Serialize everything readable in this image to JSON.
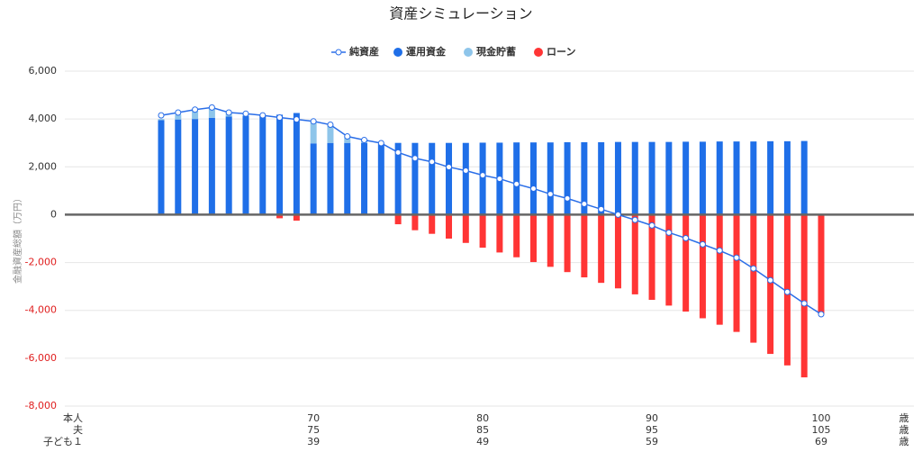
{
  "chart_data": {
    "type": "stacked_bar_line",
    "title": "資産シミュレーション",
    "y_label": "金融資産総額（万円）",
    "ylim": [
      -8000,
      6000
    ],
    "yticks": [
      {
        "value": 6000,
        "label": "6,000"
      },
      {
        "value": 4000,
        "label": "4,000"
      },
      {
        "value": 2000,
        "label": "2,000"
      },
      0,
      {
        "value": -2000,
        "label": "-2,000"
      },
      {
        "value": -4000,
        "label": "-4,000"
      },
      {
        "value": -6000,
        "label": "-6,000"
      },
      {
        "value": -8000,
        "label": "-8,000"
      }
    ],
    "negative_tick_color": "#e02020",
    "grid": true,
    "category_unit": "歳",
    "category_rows": [
      {
        "name": "本人",
        "labels": [
          null,
          null,
          null,
          null,
          null,
          null,
          null,
          null,
          null,
          70,
          null,
          null,
          null,
          null,
          null,
          null,
          null,
          null,
          null,
          80,
          null,
          null,
          null,
          null,
          null,
          null,
          null,
          null,
          null,
          90,
          null,
          null,
          null,
          null,
          null,
          null,
          null,
          null,
          null,
          100
        ]
      },
      {
        "name": "夫",
        "labels": [
          null,
          null,
          null,
          null,
          null,
          null,
          null,
          null,
          null,
          75,
          null,
          null,
          null,
          null,
          null,
          null,
          null,
          null,
          null,
          85,
          null,
          null,
          null,
          null,
          null,
          null,
          null,
          null,
          null,
          95,
          null,
          null,
          null,
          null,
          null,
          null,
          null,
          null,
          null,
          105
        ]
      },
      {
        "name": "子ども１",
        "labels": [
          null,
          null,
          null,
          null,
          null,
          null,
          null,
          null,
          null,
          39,
          null,
          null,
          null,
          null,
          null,
          null,
          null,
          null,
          null,
          49,
          null,
          null,
          null,
          null,
          null,
          null,
          null,
          null,
          null,
          59,
          null,
          null,
          null,
          null,
          null,
          null,
          null,
          null,
          null,
          69
        ]
      }
    ],
    "series": [
      {
        "name": "純資産",
        "kind": "line",
        "color": "#2a6ee8",
        "values": [
          4150,
          4270,
          4390,
          4480,
          4270,
          4220,
          4150,
          4060,
          3980,
          3900,
          3760,
          3270,
          3120,
          2990,
          2600,
          2360,
          2210,
          1990,
          1840,
          1650,
          1500,
          1280,
          1090,
          860,
          680,
          450,
          230,
          0,
          -220,
          -450,
          -750,
          -980,
          -1240,
          -1500,
          -1800,
          -2250,
          -2740,
          -3230,
          -3710,
          -4160
        ]
      },
      {
        "name": "運用資金",
        "kind": "bar",
        "stack": "pos",
        "color": "#1f6fe8",
        "values": [
          3950,
          3980,
          4000,
          4050,
          4100,
          4130,
          4150,
          4180,
          4250,
          2980,
          3000,
          3000,
          3000,
          2950,
          3000,
          3000,
          3000,
          3000,
          3000,
          3010,
          3010,
          3020,
          3020,
          3020,
          3030,
          3030,
          3030,
          3040,
          3040,
          3040,
          3040,
          3050,
          3050,
          3060,
          3060,
          3060,
          3070,
          3070,
          3080,
          null
        ]
      },
      {
        "name": "現金貯蓄",
        "kind": "bar",
        "stack": "pos",
        "color": "#8ec5ea",
        "values": [
          50,
          200,
          350,
          400,
          150,
          70,
          null,
          null,
          null,
          920,
          750,
          250,
          100,
          50,
          null,
          null,
          null,
          null,
          null,
          null,
          null,
          null,
          null,
          null,
          null,
          null,
          null,
          null,
          null,
          null,
          null,
          null,
          null,
          null,
          null,
          null,
          null,
          null,
          null,
          null
        ]
      },
      {
        "name": "ローン",
        "kind": "bar",
        "stack": "neg",
        "color": "#ff3535",
        "values": [
          null,
          null,
          null,
          null,
          null,
          null,
          null,
          -150,
          -250,
          null,
          null,
          null,
          null,
          null,
          -400,
          -650,
          -800,
          -1000,
          -1180,
          -1380,
          -1580,
          -1780,
          -1980,
          -2180,
          -2400,
          -2620,
          -2850,
          -3080,
          -3330,
          -3560,
          -3800,
          -4050,
          -4330,
          -4600,
          -4900,
          -5350,
          -5820,
          -6300,
          -6800,
          -4150
        ]
      }
    ]
  }
}
